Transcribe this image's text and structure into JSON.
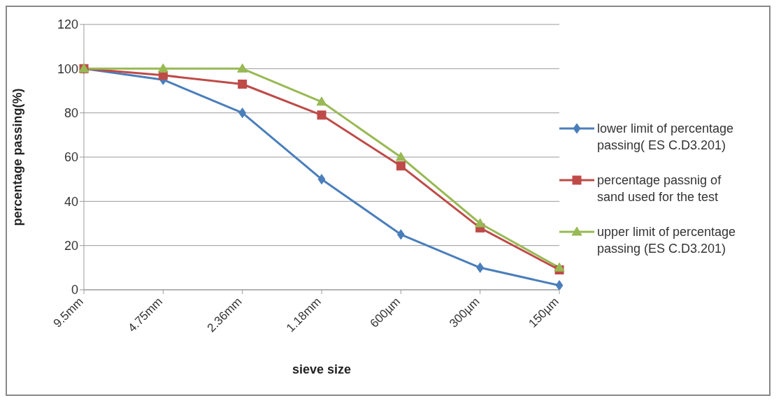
{
  "chart_data": {
    "type": "line",
    "xlabel": "sieve size",
    "ylabel": "percentage passing(%)",
    "categories": [
      "9.5mm",
      "4.75mm",
      "2.36mm",
      "1.18mm",
      "600µm",
      "300µm",
      "150µm"
    ],
    "series": [
      {
        "name": "lower limit of percentage passing( ES C.D3.201)",
        "color": "#4a7ebb",
        "marker": "diamond",
        "values": [
          100,
          95,
          80,
          50,
          25,
          10,
          2
        ]
      },
      {
        "name": "percentage passnig of sand used for the test",
        "color": "#be4b48",
        "marker": "square",
        "values": [
          100,
          97,
          93,
          79,
          56,
          28,
          9
        ]
      },
      {
        "name": "upper limit of percentage passing (ES C.D3.201)",
        "color": "#98b954",
        "marker": "triangle",
        "values": [
          100,
          100,
          100,
          85,
          60,
          30,
          10
        ]
      }
    ],
    "ylim": [
      0,
      120
    ],
    "yticks": [
      0,
      20,
      40,
      60,
      80,
      100,
      120
    ],
    "grid": "y",
    "legend": "right",
    "line_style": "solid"
  }
}
